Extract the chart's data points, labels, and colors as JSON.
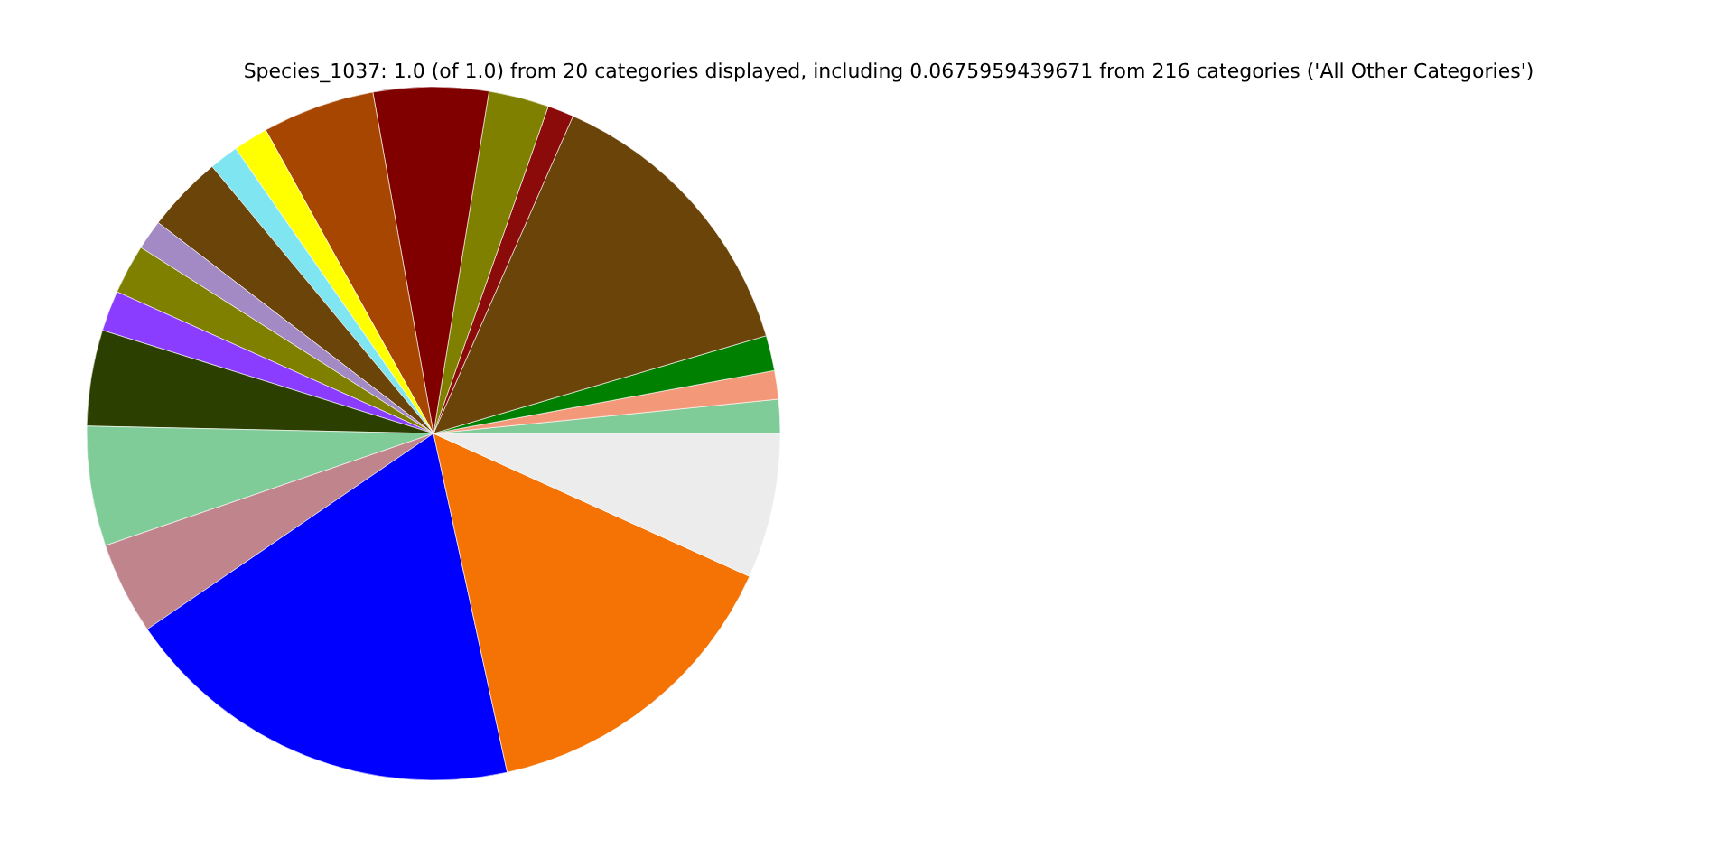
{
  "chart_data": {
    "type": "pie",
    "title": "Species_1037: 1.0 (of 1.0) from 20 categories displayed, including 0.0675959439671 from 216 categories ('All Other Categories')",
    "categories": [
      null,
      null,
      null,
      null,
      null,
      null,
      null,
      null,
      null,
      null,
      null,
      null,
      null,
      null,
      null,
      null,
      null,
      null,
      null,
      null
    ],
    "values": [
      1.58,
      1.33,
      1.64,
      13.86,
      1.22,
      2.81,
      5.36,
      5.24,
      1.62,
      1.36,
      3.58,
      1.39,
      2.31,
      1.89,
      4.47,
      5.58,
      4.31,
      18.86,
      14.83,
      6.76
    ],
    "colors": [
      "#80cc99",
      "#f4987a",
      "#008000",
      "#6b4409",
      "#8b0a0a",
      "#808000",
      "#800000",
      "#a64600",
      "#ffff00",
      "#7fe5f0",
      "#6b4409",
      "#a48ac4",
      "#808000",
      "#8b3dff",
      "#2b4000",
      "#80cc99",
      "#bf848c",
      "#0000ff",
      "#f47304",
      "#ececec"
    ]
  }
}
